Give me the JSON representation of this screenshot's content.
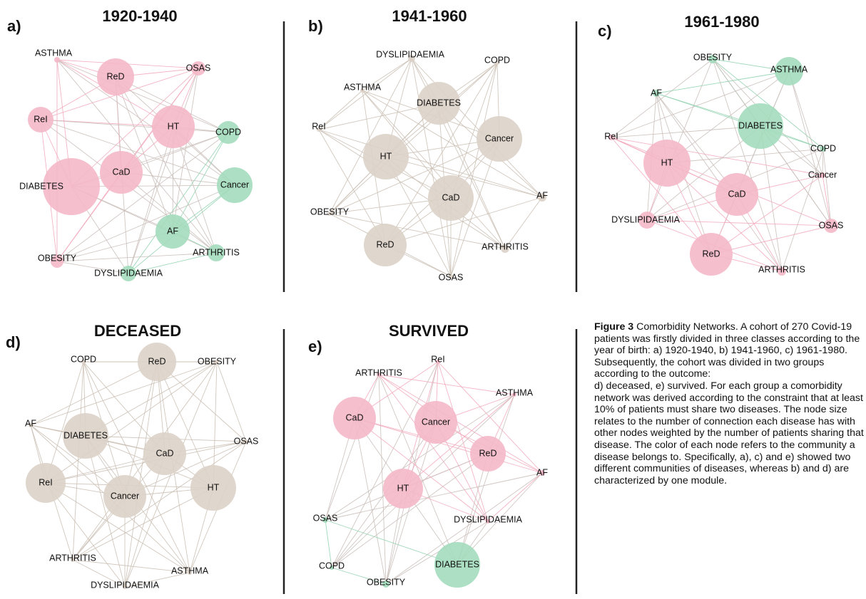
{
  "panels": [
    {
      "letter": "a)",
      "title": "1920-1940",
      "nodes": [
        {
          "label": "ASTHMA",
          "color": "#f4b8c8"
        },
        {
          "label": "ReD",
          "color": "#f4b8c8"
        },
        {
          "label": "OSAS",
          "color": "#f4b8c8"
        },
        {
          "label": "ReI",
          "color": "#f4b8c8"
        },
        {
          "label": "HT",
          "color": "#f4b8c8"
        },
        {
          "label": "COPD",
          "color": "#a3dcbd"
        },
        {
          "label": "CaD",
          "color": "#f4b8c8"
        },
        {
          "label": "DIABETES",
          "color": "#f4b8c8"
        },
        {
          "label": "Cancer",
          "color": "#a3dcbd"
        },
        {
          "label": "AF",
          "color": "#a3dcbd"
        },
        {
          "label": "OBESITY",
          "color": "#f4b8c8"
        },
        {
          "label": "ARTHRITIS",
          "color": "#a3dcbd"
        },
        {
          "label": "DYSLIPIDAEMIA",
          "color": "#a3dcbd"
        }
      ]
    },
    {
      "letter": "b)",
      "title": "1941-1960",
      "nodes": [
        {
          "label": "DYSLIPIDAEMIA",
          "color": "#dbd2c8"
        },
        {
          "label": "COPD",
          "color": "#dbd2c8"
        },
        {
          "label": "ASTHMA",
          "color": "#dbd2c8"
        },
        {
          "label": "DIABETES",
          "color": "#dbd2c8"
        },
        {
          "label": "Cancer",
          "color": "#dbd2c8"
        },
        {
          "label": "ReI",
          "color": "#dbd2c8"
        },
        {
          "label": "HT",
          "color": "#dbd2c8"
        },
        {
          "label": "CaD",
          "color": "#dbd2c8"
        },
        {
          "label": "AF",
          "color": "#dbd2c8"
        },
        {
          "label": "OBESITY",
          "color": "#dbd2c8"
        },
        {
          "label": "ReD",
          "color": "#dbd2c8"
        },
        {
          "label": "ARTHRITIS",
          "color": "#dbd2c8"
        },
        {
          "label": "OSAS",
          "color": "#dbd2c8"
        }
      ]
    },
    {
      "letter": "c)",
      "title": "1961-1980",
      "nodes": [
        {
          "label": "OBESITY",
          "color": "#a3dcbd"
        },
        {
          "label": "ASTHMA",
          "color": "#a3dcbd"
        },
        {
          "label": "AF",
          "color": "#a3dcbd"
        },
        {
          "label": "DIABETES",
          "color": "#a3dcbd"
        },
        {
          "label": "ReI",
          "color": "#f4b8c8"
        },
        {
          "label": "HT",
          "color": "#f4b8c8"
        },
        {
          "label": "COPD",
          "color": "#a3dcbd"
        },
        {
          "label": "Cancer",
          "color": "#f4b8c8"
        },
        {
          "label": "CaD",
          "color": "#f4b8c8"
        },
        {
          "label": "DYSLIPIDAEMIA",
          "color": "#f4b8c8"
        },
        {
          "label": "OSAS",
          "color": "#f4b8c8"
        },
        {
          "label": "ReD",
          "color": "#f4b8c8"
        },
        {
          "label": "ARTHRITIS",
          "color": "#f4b8c8"
        }
      ]
    },
    {
      "letter": "d)",
      "title": "DECEASED",
      "nodes": [
        {
          "label": "COPD",
          "color": "#dbd2c8"
        },
        {
          "label": "ReD",
          "color": "#dbd2c8"
        },
        {
          "label": "OBESITY",
          "color": "#dbd2c8"
        },
        {
          "label": "AF",
          "color": "#dbd2c8"
        },
        {
          "label": "DIABETES",
          "color": "#dbd2c8"
        },
        {
          "label": "CaD",
          "color": "#dbd2c8"
        },
        {
          "label": "OSAS",
          "color": "#dbd2c8"
        },
        {
          "label": "ReI",
          "color": "#dbd2c8"
        },
        {
          "label": "Cancer",
          "color": "#dbd2c8"
        },
        {
          "label": "HT",
          "color": "#dbd2c8"
        },
        {
          "label": "ARTHRITIS",
          "color": "#dbd2c8"
        },
        {
          "label": "ASTHMA",
          "color": "#dbd2c8"
        },
        {
          "label": "DYSLIPIDAEMIA",
          "color": "#dbd2c8"
        }
      ]
    },
    {
      "letter": "e)",
      "title": "SURVIVED",
      "nodes": [
        {
          "label": "ARTHRITIS",
          "color": "#f4b8c8"
        },
        {
          "label": "ReI",
          "color": "#f4b8c8"
        },
        {
          "label": "ASTHMA",
          "color": "#f4b8c8"
        },
        {
          "label": "CaD",
          "color": "#f4b8c8"
        },
        {
          "label": "Cancer",
          "color": "#f4b8c8"
        },
        {
          "label": "ReD",
          "color": "#f4b8c8"
        },
        {
          "label": "AF",
          "color": "#f4b8c8"
        },
        {
          "label": "HT",
          "color": "#f4b8c8"
        },
        {
          "label": "OSAS",
          "color": "#a3dcbd"
        },
        {
          "label": "DYSLIPIDAEMIA",
          "color": "#f4b8c8"
        },
        {
          "label": "COPD",
          "color": "#a3dcbd"
        },
        {
          "label": "DIABETES",
          "color": "#a3dcbd"
        },
        {
          "label": "OBESITY",
          "color": "#a3dcbd"
        }
      ]
    }
  ],
  "caption": {
    "label": "Figure 3",
    "text": "Comorbidity Networks. A cohort of 270 Covid-19 patients was firstly divided in three classes according to the year of birth: a) 1920-1940, b) 1941-1960, c) 1961-1980. Subsequently, the cohort was divided in two groups according to the outcome:",
    "text2": "d) deceased, e) survived. For each group a comorbidity network was derived according to the constraint that at least 10% of patients must share two diseases. The node size relates to the number of connection each disease has with other nodes weighted by the number of patients sharing that disease. The color of each node refers to the community a disease belongs to. Specifically, a), c) and e) showed two different communities of diseases, whereas b) and d) are characterized by one module."
  }
}
